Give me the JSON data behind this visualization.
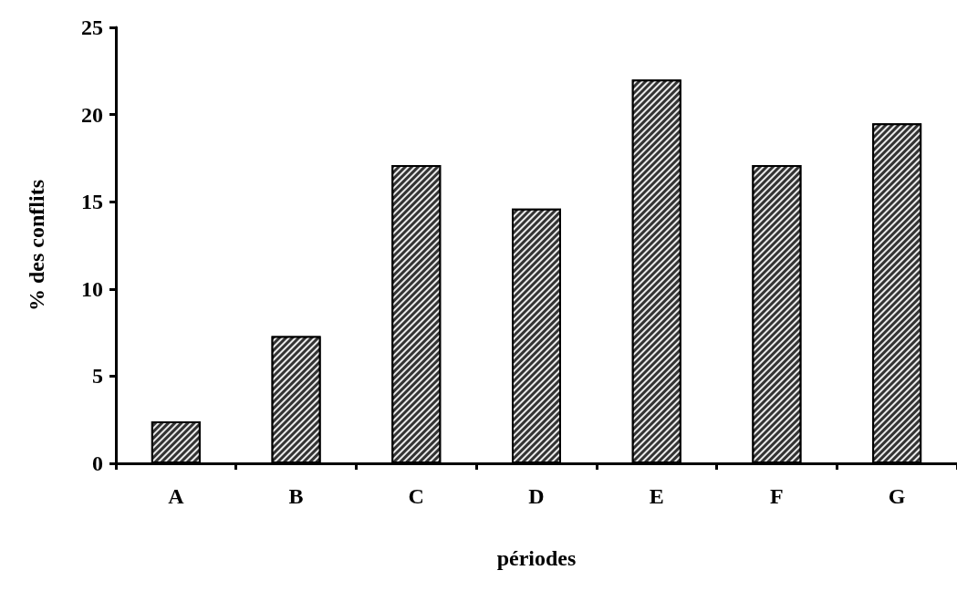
{
  "chart_data": {
    "type": "bar",
    "xlabel": "périodes",
    "ylabel": "% des conflits",
    "categories": [
      "A",
      "B",
      "C",
      "D",
      "E",
      "F",
      "G"
    ],
    "values": [
      2.4,
      7.3,
      17.1,
      14.6,
      22.0,
      17.1,
      19.5
    ],
    "color": "#333333",
    "ylim": [
      0,
      25
    ],
    "yticks": [
      0,
      5,
      10,
      15,
      20,
      25
    ],
    "grid": false
  }
}
